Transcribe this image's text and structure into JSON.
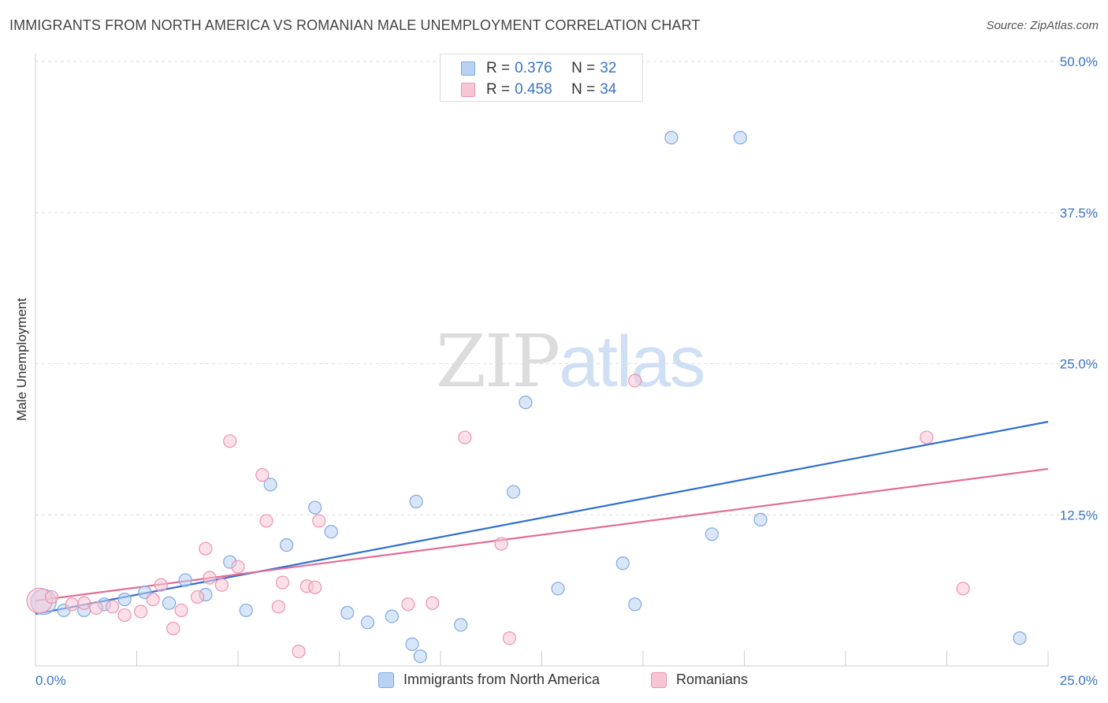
{
  "header": {
    "title": "IMMIGRANTS FROM NORTH AMERICA VS ROMANIAN MALE UNEMPLOYMENT CORRELATION CHART",
    "source": "Source: ZipAtlas.com"
  },
  "watermark": {
    "zip": "ZIP",
    "atlas": "atlas"
  },
  "legend": {
    "r_label": "R =",
    "n_label": "N =",
    "entries": [
      {
        "r": "0.376",
        "n": "32"
      },
      {
        "r": "0.458",
        "n": "34"
      }
    ]
  },
  "colors": {
    "blue_fill": "#b9d2f3",
    "blue_stroke": "#7fa9e0",
    "blue_line": "#2f6fcf",
    "pink_fill": "#f7c6d5",
    "pink_stroke": "#ec93b2",
    "pink_line": "#e46c98",
    "tick_label": "#3a74c4",
    "grid": "#dddddd"
  },
  "chart_data": {
    "type": "scatter",
    "title": "IMMIGRANTS FROM NORTH AMERICA VS ROMANIAN MALE UNEMPLOYMENT CORRELATION CHART",
    "xlabel": "",
    "ylabel": "Male Unemployment",
    "xlim": [
      0,
      25
    ],
    "ylim": [
      0,
      50
    ],
    "x_tick_labels": [
      "0.0%",
      "25.0%"
    ],
    "y_ticks": [
      12.5,
      25,
      37.5,
      50
    ],
    "y_tick_labels": [
      "12.5%",
      "25.0%",
      "37.5%",
      "50.0%"
    ],
    "grid": true,
    "legend_position": "bottom",
    "series": [
      {
        "name": "Immigrants from North America",
        "color": "blue",
        "trend": {
          "x": [
            0,
            25
          ],
          "y": [
            4.3,
            20.2
          ]
        },
        "points": [
          {
            "x": 0.2,
            "y": 5.3,
            "big": true
          },
          {
            "x": 0.7,
            "y": 4.6
          },
          {
            "x": 1.2,
            "y": 4.6
          },
          {
            "x": 1.7,
            "y": 5.1
          },
          {
            "x": 2.2,
            "y": 5.5
          },
          {
            "x": 2.7,
            "y": 6.1
          },
          {
            "x": 3.3,
            "y": 5.2
          },
          {
            "x": 3.7,
            "y": 7.1
          },
          {
            "x": 4.2,
            "y": 5.9
          },
          {
            "x": 4.8,
            "y": 8.6
          },
          {
            "x": 5.2,
            "y": 4.6
          },
          {
            "x": 5.8,
            "y": 15.0
          },
          {
            "x": 6.2,
            "y": 10.0
          },
          {
            "x": 6.9,
            "y": 13.1
          },
          {
            "x": 7.3,
            "y": 11.1
          },
          {
            "x": 7.7,
            "y": 4.4
          },
          {
            "x": 8.2,
            "y": 3.6
          },
          {
            "x": 8.8,
            "y": 4.1
          },
          {
            "x": 9.3,
            "y": 1.8
          },
          {
            "x": 9.4,
            "y": 13.6
          },
          {
            "x": 9.5,
            "y": 0.8
          },
          {
            "x": 10.5,
            "y": 3.4
          },
          {
            "x": 11.8,
            "y": 14.4
          },
          {
            "x": 12.1,
            "y": 21.8
          },
          {
            "x": 12.9,
            "y": 6.4
          },
          {
            "x": 14.5,
            "y": 8.5
          },
          {
            "x": 14.8,
            "y": 5.1
          },
          {
            "x": 15.7,
            "y": 43.7
          },
          {
            "x": 16.7,
            "y": 10.9
          },
          {
            "x": 17.4,
            "y": 43.7
          },
          {
            "x": 17.9,
            "y": 12.1
          },
          {
            "x": 24.3,
            "y": 2.3
          }
        ]
      },
      {
        "name": "Romanians",
        "color": "pink",
        "trend": {
          "x": [
            0,
            25
          ],
          "y": [
            5.4,
            16.3
          ]
        },
        "points": [
          {
            "x": 0.1,
            "y": 5.4,
            "big": true
          },
          {
            "x": 0.4,
            "y": 5.7
          },
          {
            "x": 0.9,
            "y": 5.1
          },
          {
            "x": 1.2,
            "y": 5.2
          },
          {
            "x": 1.5,
            "y": 4.8
          },
          {
            "x": 1.9,
            "y": 4.9
          },
          {
            "x": 2.2,
            "y": 4.2
          },
          {
            "x": 2.6,
            "y": 4.5
          },
          {
            "x": 2.9,
            "y": 5.5
          },
          {
            "x": 3.1,
            "y": 6.7
          },
          {
            "x": 3.4,
            "y": 3.1
          },
          {
            "x": 3.6,
            "y": 4.6
          },
          {
            "x": 4.0,
            "y": 5.7
          },
          {
            "x": 4.2,
            "y": 9.7
          },
          {
            "x": 4.3,
            "y": 7.3
          },
          {
            "x": 4.6,
            "y": 6.7
          },
          {
            "x": 4.8,
            "y": 18.6
          },
          {
            "x": 5.0,
            "y": 8.2
          },
          {
            "x": 5.6,
            "y": 15.8
          },
          {
            "x": 5.7,
            "y": 12.0
          },
          {
            "x": 6.0,
            "y": 4.9
          },
          {
            "x": 6.1,
            "y": 6.9
          },
          {
            "x": 6.5,
            "y": 1.2
          },
          {
            "x": 6.7,
            "y": 6.6
          },
          {
            "x": 7.0,
            "y": 12.0
          },
          {
            "x": 9.2,
            "y": 5.1
          },
          {
            "x": 9.8,
            "y": 5.2
          },
          {
            "x": 10.6,
            "y": 18.9
          },
          {
            "x": 11.5,
            "y": 10.1
          },
          {
            "x": 11.7,
            "y": 2.3
          },
          {
            "x": 14.8,
            "y": 23.6
          },
          {
            "x": 22.0,
            "y": 18.9
          },
          {
            "x": 22.9,
            "y": 6.4
          },
          {
            "x": 6.9,
            "y": 6.5
          }
        ]
      }
    ]
  }
}
